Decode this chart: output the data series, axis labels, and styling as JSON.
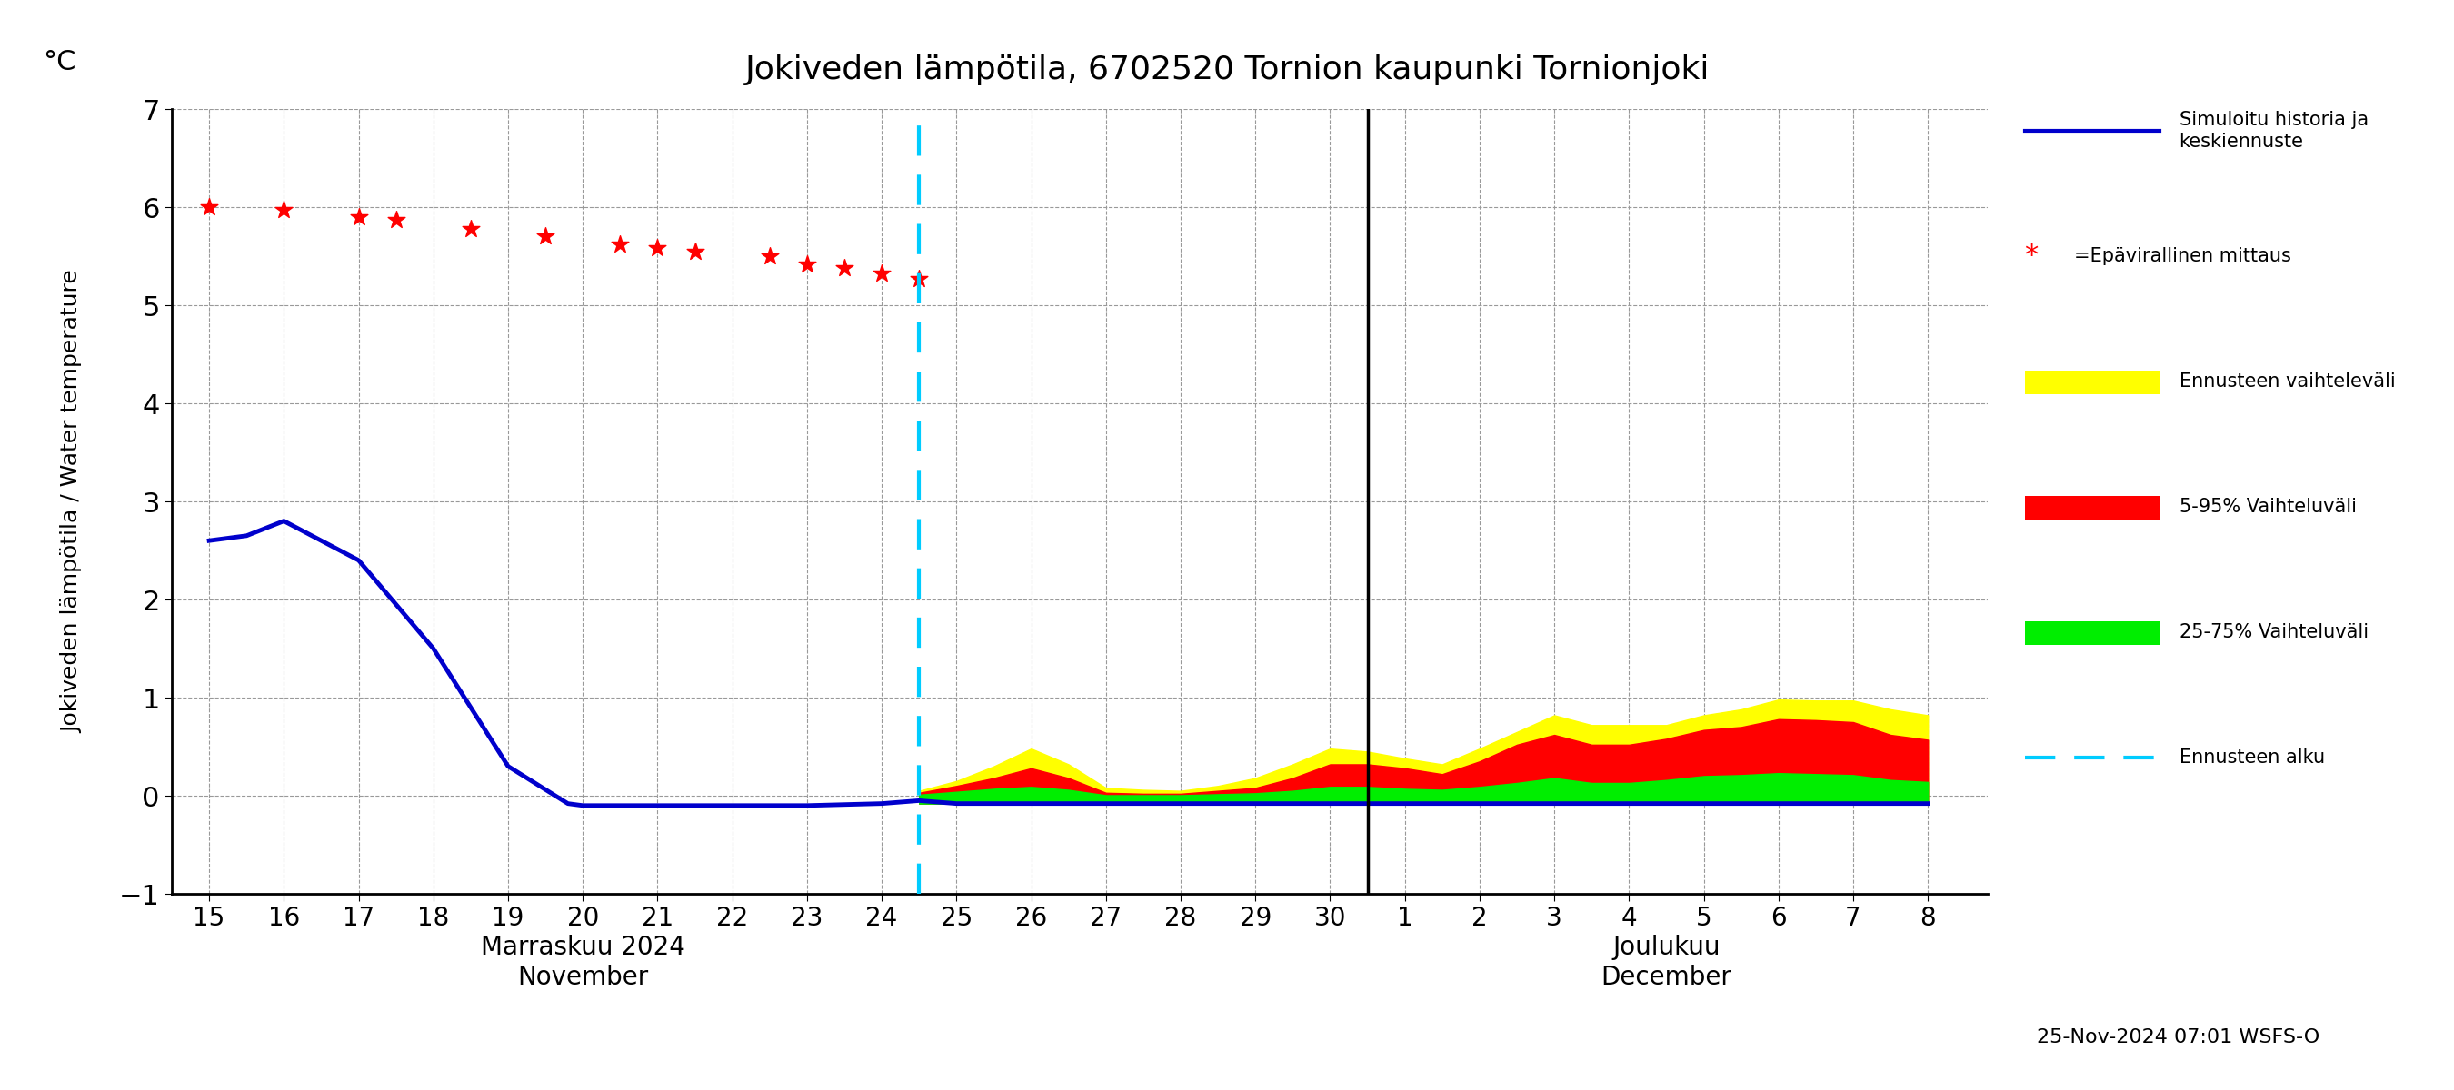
{
  "title": "Jokiveden lämpötila, 6702520 Tornion kaupunki Tornionjoki",
  "ylabel_fi": "Jokiveden lämpötila / Water temperature",
  "ylabel_unit": "°C",
  "ylim": [
    -1,
    7
  ],
  "yticks": [
    -1,
    0,
    1,
    2,
    3,
    4,
    5,
    6,
    7
  ],
  "forecast_start_x": 24.5,
  "vline_color": "#00CCFF",
  "bg_color": "#ffffff",
  "blue_line_color": "#0000CC",
  "red_star_color": "#FF0000",
  "footnote": "25-Nov-2024 07:01 WSFS-O",
  "xlabel_nov": "Marraskuu 2024\nNovember",
  "xlabel_dec": "Joulukuu\nDecember",
  "blue_line_data_x": [
    15,
    15.5,
    16,
    17,
    18,
    19,
    19.8,
    20,
    21,
    22,
    23,
    24,
    24.5,
    25,
    26,
    27,
    28,
    29,
    30,
    31,
    32,
    33,
    34,
    35,
    36,
    37,
    38
  ],
  "blue_line_data_y": [
    2.6,
    2.65,
    2.8,
    2.4,
    1.5,
    0.3,
    -0.08,
    -0.1,
    -0.1,
    -0.1,
    -0.1,
    -0.08,
    -0.05,
    -0.08,
    -0.08,
    -0.08,
    -0.08,
    -0.08,
    -0.08,
    -0.08,
    -0.08,
    -0.08,
    -0.08,
    -0.08,
    -0.08,
    -0.08,
    -0.08
  ],
  "red_stars_x": [
    15,
    16,
    17,
    17.5,
    18.5,
    19.5,
    20.5,
    21,
    21.5,
    22.5,
    23,
    23.5,
    24,
    24.5
  ],
  "red_stars_y": [
    6.0,
    5.97,
    5.9,
    5.87,
    5.78,
    5.7,
    5.62,
    5.58,
    5.55,
    5.5,
    5.42,
    5.38,
    5.32,
    5.27
  ],
  "forecast_yellow_x": [
    24.5,
    25,
    25.5,
    26,
    26.5,
    27,
    27.5,
    28,
    28.5,
    29,
    29.5,
    30,
    30.5,
    31,
    31.5,
    32,
    32.5,
    33,
    33.5,
    34,
    34.5,
    35,
    35.5,
    36,
    36.5,
    37,
    37.5,
    38
  ],
  "forecast_yellow_y": [
    0.05,
    0.15,
    0.3,
    0.48,
    0.32,
    0.08,
    0.06,
    0.05,
    0.1,
    0.18,
    0.32,
    0.48,
    0.45,
    0.38,
    0.32,
    0.48,
    0.65,
    0.82,
    0.72,
    0.72,
    0.72,
    0.82,
    0.88,
    0.98,
    0.97,
    0.97,
    0.88,
    0.82
  ],
  "forecast_red_x": [
    24.5,
    25,
    25.5,
    26,
    26.5,
    27,
    27.5,
    28,
    28.5,
    29,
    29.5,
    30,
    30.5,
    31,
    31.5,
    32,
    32.5,
    33,
    33.5,
    34,
    34.5,
    35,
    35.5,
    36,
    36.5,
    37,
    37.5,
    38
  ],
  "forecast_red_y": [
    0.03,
    0.1,
    0.18,
    0.28,
    0.18,
    0.03,
    0.02,
    0.02,
    0.05,
    0.08,
    0.18,
    0.32,
    0.32,
    0.28,
    0.22,
    0.35,
    0.52,
    0.62,
    0.52,
    0.52,
    0.58,
    0.67,
    0.7,
    0.78,
    0.77,
    0.75,
    0.62,
    0.57
  ],
  "forecast_green_x": [
    24.5,
    25,
    25.5,
    26,
    26.5,
    27,
    27.5,
    28,
    28.5,
    29,
    29.5,
    30,
    30.5,
    31,
    31.5,
    32,
    32.5,
    33,
    33.5,
    34,
    34.5,
    35,
    35.5,
    36,
    36.5,
    37,
    37.5,
    38
  ],
  "forecast_green_y": [
    0.01,
    0.04,
    0.07,
    0.09,
    0.06,
    0.005,
    0.005,
    0.005,
    0.015,
    0.025,
    0.05,
    0.09,
    0.09,
    0.07,
    0.06,
    0.09,
    0.13,
    0.18,
    0.13,
    0.13,
    0.16,
    0.2,
    0.21,
    0.23,
    0.22,
    0.21,
    0.16,
    0.14
  ],
  "forecast_baseline": -0.08,
  "xtick_nov": [
    15,
    16,
    17,
    18,
    19,
    20,
    21,
    22,
    23,
    24,
    25
  ],
  "xtick_nov_labels": [
    "15",
    "16",
    "17",
    "18",
    "19",
    "20",
    "21",
    "22",
    "23",
    "24",
    "25"
  ],
  "xtick_mid": [
    26,
    27,
    28,
    29,
    30
  ],
  "xtick_mid_labels": [
    "26",
    "27",
    "28",
    "29",
    "30"
  ],
  "xtick_dec": [
    31,
    32,
    33,
    34,
    35,
    36,
    37,
    38
  ],
  "xtick_dec_labels": [
    "1",
    "2",
    "3",
    "4",
    "5",
    "6",
    "7",
    "8"
  ],
  "xmin": 14.5,
  "xmax": 38.8,
  "dec_vline_x": 30.5,
  "grid_color": "#999999"
}
